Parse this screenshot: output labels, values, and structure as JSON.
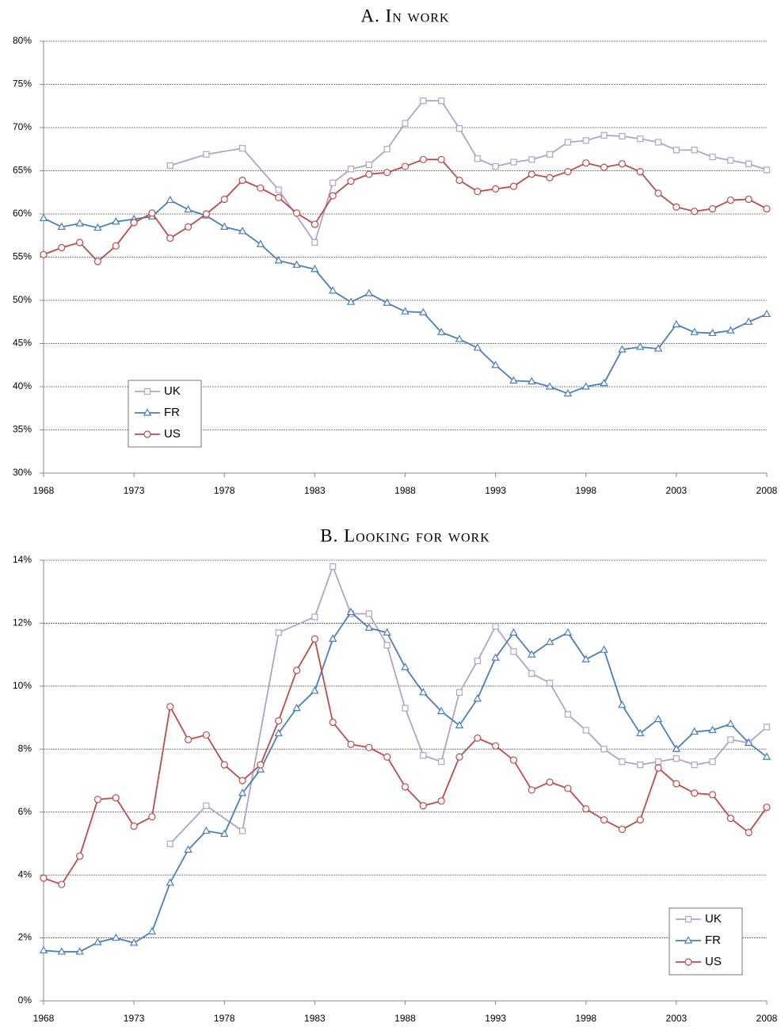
{
  "chart_data": [
    {
      "type": "line",
      "title": "A. In work",
      "x": [
        1968,
        1969,
        1970,
        1971,
        1972,
        1973,
        1974,
        1975,
        1976,
        1977,
        1978,
        1979,
        1980,
        1981,
        1982,
        1983,
        1984,
        1985,
        1986,
        1987,
        1988,
        1989,
        1990,
        1991,
        1992,
        1993,
        1994,
        1995,
        1996,
        1997,
        1998,
        1999,
        2000,
        2001,
        2002,
        2003,
        2004,
        2005,
        2006,
        2007,
        2008
      ],
      "xlim": [
        1968,
        2008
      ],
      "xticks": [
        1968,
        1973,
        1978,
        1983,
        1988,
        1993,
        1998,
        2003,
        2008
      ],
      "ylim": [
        30,
        80
      ],
      "yticks": [
        {
          "value": 30,
          "label": "30%"
        },
        {
          "value": 35,
          "label": "35%"
        },
        {
          "value": 40,
          "label": "40%"
        },
        {
          "value": 45,
          "label": "45%"
        },
        {
          "value": 50,
          "label": "50%"
        },
        {
          "value": 55,
          "label": "55%"
        },
        {
          "value": 60,
          "label": "60%"
        },
        {
          "value": 65,
          "label": "65%"
        },
        {
          "value": 70,
          "label": "70%"
        },
        {
          "value": 75,
          "label": "75%"
        },
        {
          "value": 80,
          "label": "80%"
        }
      ],
      "grid": true,
      "legend": "lower left",
      "series": [
        {
          "name": "UK",
          "color": "#b3a2c7",
          "marker": "square",
          "x": [
            1975,
            1977,
            1979,
            1981,
            1983,
            1984,
            1985,
            1986,
            1987,
            1988,
            1989,
            1990,
            1991,
            1992,
            1993,
            1994,
            1995,
            1996,
            1997,
            1998,
            1999,
            2000,
            2001,
            2002,
            2003,
            2004,
            2005,
            2006,
            2007,
            2008
          ],
          "values": [
            65.6,
            66.9,
            67.6,
            62.8,
            56.7,
            63.6,
            65.2,
            65.7,
            67.5,
            70.5,
            73.1,
            73.1,
            69.9,
            66.4,
            65.5,
            66.0,
            66.3,
            66.9,
            68.3,
            68.5,
            69.1,
            69.0,
            68.7,
            68.3,
            67.4,
            67.4,
            66.6,
            66.2,
            65.8,
            65.1
          ]
        },
        {
          "name": "FR",
          "color": "#4a7ebb",
          "marker": "triangle",
          "values": [
            59.5,
            58.5,
            58.9,
            58.4,
            59.1,
            59.4,
            59.7,
            61.6,
            60.5,
            59.8,
            58.5,
            58.0,
            56.5,
            54.6,
            54.1,
            53.6,
            51.1,
            49.8,
            50.8,
            49.7,
            48.7,
            48.6,
            46.3,
            45.5,
            44.5,
            42.5,
            40.7,
            40.6,
            40.0,
            39.2,
            40.0,
            40.4,
            44.3,
            44.6,
            44.4,
            47.2,
            46.3,
            46.2,
            46.5,
            47.5,
            48.4
          ]
        },
        {
          "name": "US",
          "color": "#be4b48",
          "marker": "circle",
          "values": [
            55.3,
            56.1,
            56.7,
            54.5,
            56.3,
            59.0,
            60.1,
            57.2,
            58.5,
            60.0,
            61.7,
            63.9,
            63.0,
            61.9,
            60.1,
            58.8,
            62.1,
            63.8,
            64.6,
            64.8,
            65.5,
            66.3,
            66.3,
            63.9,
            62.6,
            62.9,
            63.2,
            64.6,
            64.2,
            64.9,
            65.9,
            65.4,
            65.8,
            64.9,
            62.4,
            60.8,
            60.3,
            60.6,
            61.6,
            61.7,
            60.6
          ]
        }
      ]
    },
    {
      "type": "line",
      "title": "B. Looking for work",
      "x": [
        1968,
        1969,
        1970,
        1971,
        1972,
        1973,
        1974,
        1975,
        1976,
        1977,
        1978,
        1979,
        1980,
        1981,
        1982,
        1983,
        1984,
        1985,
        1986,
        1987,
        1988,
        1989,
        1990,
        1991,
        1992,
        1993,
        1994,
        1995,
        1996,
        1997,
        1998,
        1999,
        2000,
        2001,
        2002,
        2003,
        2004,
        2005,
        2006,
        2007,
        2008
      ],
      "xlim": [
        1968,
        2008
      ],
      "xticks": [
        1968,
        1973,
        1978,
        1983,
        1988,
        1993,
        1998,
        2003,
        2008
      ],
      "ylim": [
        0,
        14
      ],
      "yticks": [
        {
          "value": 0,
          "label": "0%"
        },
        {
          "value": 2,
          "label": "2%"
        },
        {
          "value": 4,
          "label": "4%"
        },
        {
          "value": 6,
          "label": "6%"
        },
        {
          "value": 8,
          "label": "8%"
        },
        {
          "value": 10,
          "label": "10%"
        },
        {
          "value": 12,
          "label": "12%"
        },
        {
          "value": 14,
          "label": "14%"
        }
      ],
      "grid": true,
      "legend": "lower right",
      "series": [
        {
          "name": "UK",
          "color": "#b3a2c7",
          "marker": "square",
          "x": [
            1975,
            1977,
            1979,
            1981,
            1983,
            1984,
            1985,
            1986,
            1987,
            1988,
            1989,
            1990,
            1991,
            1992,
            1993,
            1994,
            1995,
            1996,
            1997,
            1998,
            1999,
            2000,
            2001,
            2002,
            2003,
            2004,
            2005,
            2006,
            2007,
            2008
          ],
          "values": [
            4.99,
            6.2,
            5.4,
            11.7,
            12.2,
            13.8,
            12.3,
            12.3,
            11.3,
            9.3,
            7.8,
            7.6,
            9.8,
            10.8,
            11.9,
            11.1,
            10.4,
            10.1,
            9.1,
            8.6,
            8.0,
            7.6,
            7.5,
            7.6,
            7.7,
            7.5,
            7.6,
            8.3,
            8.2,
            8.7
          ]
        },
        {
          "name": "FR",
          "color": "#4a7ebb",
          "marker": "triangle",
          "values": [
            1.6,
            1.56,
            1.56,
            1.86,
            2.0,
            1.84,
            2.2,
            3.75,
            4.8,
            5.4,
            5.3,
            6.6,
            7.35,
            8.5,
            9.3,
            9.85,
            11.5,
            12.35,
            11.85,
            11.7,
            10.6,
            9.8,
            9.2,
            8.75,
            9.6,
            10.9,
            11.7,
            11.0,
            11.4,
            11.7,
            10.85,
            11.15,
            9.4,
            8.5,
            8.95,
            8.0,
            8.55,
            8.6,
            8.8,
            8.2,
            7.75
          ]
        },
        {
          "name": "US",
          "color": "#be4b48",
          "marker": "circle",
          "values": [
            3.9,
            3.7,
            4.6,
            6.4,
            6.45,
            5.55,
            5.85,
            9.35,
            8.3,
            8.45,
            7.5,
            7.0,
            7.5,
            8.9,
            10.5,
            11.5,
            8.85,
            8.15,
            8.05,
            7.75,
            6.8,
            6.2,
            6.35,
            7.75,
            8.35,
            8.1,
            7.65,
            6.7,
            6.95,
            6.75,
            6.1,
            5.75,
            5.45,
            5.75,
            7.4,
            6.9,
            6.6,
            6.55,
            5.8,
            5.35,
            6.15
          ]
        }
      ]
    }
  ]
}
